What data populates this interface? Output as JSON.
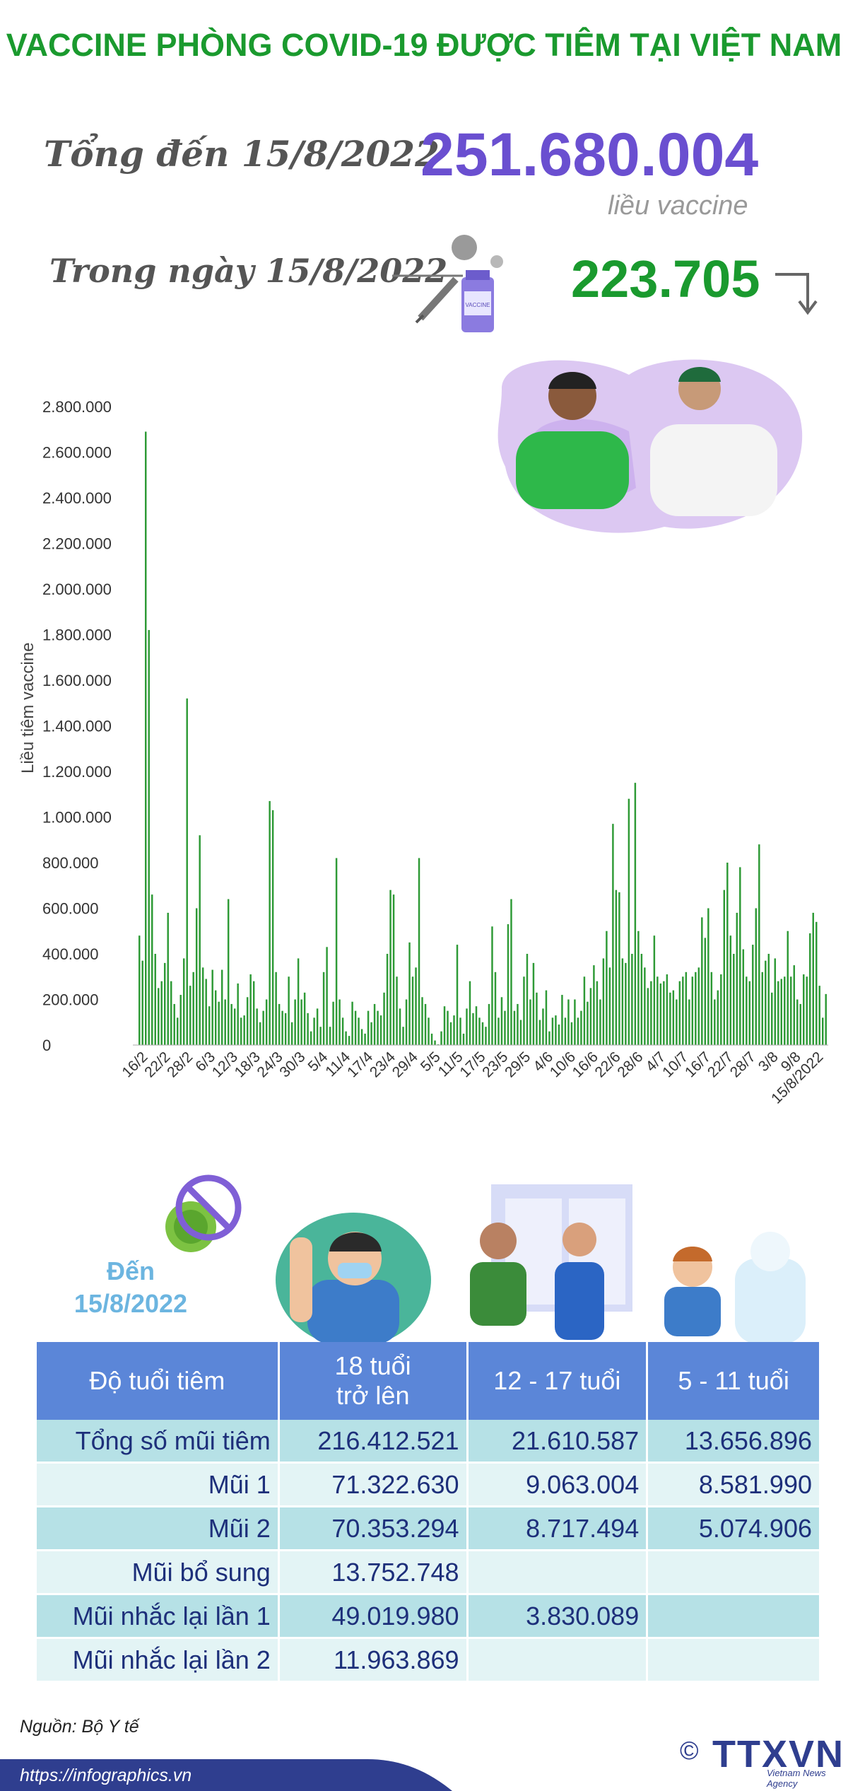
{
  "title": "VACCINE PHÒNG COVID-19 ĐƯỢC TIÊM TẠI VIỆT NAM",
  "summary": {
    "total_label": "Tổng đến 15/8/2022",
    "total_value": "251.680.004",
    "total_unit": "liều vaccine",
    "day_label": "Trong ngày 15/8/2022",
    "day_value": "223.705",
    "vial_text": "VACCINE"
  },
  "chart_data": {
    "type": "bar",
    "title": "",
    "xlabel": "",
    "ylabel": "Liều tiêm vaccine",
    "ylim": [
      0,
      2800000
    ],
    "yticks": [
      "2.800.000",
      "2.600.000",
      "2.400.000",
      "2.200.000",
      "2.000.000",
      "1.800.000",
      "1.600.000",
      "1.400.000",
      "1.200.000",
      "1.000.000",
      "800.000",
      "600.000",
      "400.000",
      "200.000",
      "0"
    ],
    "xtick_labels": [
      "16/2",
      "22/2",
      "28/2",
      "6/3",
      "12/3",
      "18/3",
      "24/3",
      "30/3",
      "5/4",
      "11/4",
      "17/4",
      "23/4",
      "29/4",
      "5/5",
      "11/5",
      "17/5",
      "23/5",
      "29/5",
      "4/6",
      "10/6",
      "16/6",
      "22/6",
      "28/6",
      "4/7",
      "10/7",
      "16/7",
      "22/7",
      "28/7",
      "3/8",
      "9/8",
      "15/8/2022"
    ],
    "values": [
      480000,
      370000,
      2690000,
      1820000,
      660000,
      400000,
      250000,
      280000,
      360000,
      580000,
      280000,
      180000,
      120000,
      220000,
      380000,
      1520000,
      260000,
      320000,
      600000,
      920000,
      340000,
      290000,
      170000,
      330000,
      240000,
      190000,
      330000,
      200000,
      640000,
      180000,
      160000,
      270000,
      120000,
      130000,
      210000,
      310000,
      280000,
      160000,
      100000,
      150000,
      200000,
      1070000,
      1030000,
      320000,
      180000,
      150000,
      140000,
      300000,
      100000,
      200000,
      380000,
      200000,
      230000,
      140000,
      60000,
      120000,
      160000,
      80000,
      320000,
      430000,
      80000,
      190000,
      820000,
      200000,
      120000,
      60000,
      40000,
      190000,
      150000,
      120000,
      70000,
      50000,
      150000,
      100000,
      180000,
      150000,
      130000,
      230000,
      400000,
      680000,
      660000,
      300000,
      160000,
      80000,
      200000,
      450000,
      300000,
      340000,
      820000,
      210000,
      180000,
      120000,
      50000,
      20000,
      0,
      60000,
      170000,
      150000,
      100000,
      130000,
      440000,
      120000,
      50000,
      160000,
      280000,
      140000,
      170000,
      120000,
      100000,
      80000,
      180000,
      520000,
      320000,
      120000,
      210000,
      150000,
      530000,
      640000,
      150000,
      180000,
      110000,
      300000,
      400000,
      200000,
      360000,
      230000,
      110000,
      160000,
      240000,
      60000,
      120000,
      130000,
      90000,
      220000,
      120000,
      200000,
      100000,
      200000,
      120000,
      150000,
      300000,
      190000,
      250000,
      350000,
      280000,
      200000,
      380000,
      500000,
      340000,
      970000,
      680000,
      670000,
      380000,
      360000,
      1080000,
      400000,
      1150000,
      500000,
      400000,
      340000,
      250000,
      280000,
      480000,
      300000,
      270000,
      280000,
      310000,
      230000,
      240000,
      200000,
      280000,
      300000,
      320000,
      200000,
      300000,
      320000,
      340000,
      560000,
      470000,
      600000,
      320000,
      200000,
      240000,
      310000,
      680000,
      800000,
      480000,
      400000,
      580000,
      780000,
      420000,
      300000,
      280000,
      440000,
      600000,
      880000,
      320000,
      370000,
      400000,
      230000,
      380000,
      280000,
      290000,
      300000,
      500000,
      300000,
      350000,
      200000,
      180000,
      310000,
      300000,
      490000,
      580000,
      540000,
      260000,
      120000,
      223705
    ]
  },
  "age_section": {
    "den_label": "Đến",
    "den_date": "15/8/2022"
  },
  "table": {
    "headers": [
      "Độ tuổi tiêm",
      "18 tuổi\ntrở lên",
      "12 - 17 tuổi",
      "5 - 11 tuổi"
    ],
    "rows": [
      [
        "Tổng số mũi tiêm",
        "216.412.521",
        "21.610.587",
        "13.656.896"
      ],
      [
        "Mũi 1",
        "71.322.630",
        "9.063.004",
        "8.581.990"
      ],
      [
        "Mũi 2",
        "70.353.294",
        "8.717.494",
        "5.074.906"
      ],
      [
        "Mũi bổ sung",
        "13.752.748",
        "",
        ""
      ],
      [
        "Mũi nhắc lại lần 1",
        "49.019.980",
        "3.830.089",
        ""
      ],
      [
        "Mũi nhắc lại lần 2",
        "11.963.869",
        "",
        ""
      ]
    ]
  },
  "footer": {
    "source": "Nguồn: Bộ Y tế",
    "url": "https://infographics.vn",
    "logo": "TTXVN",
    "logo_sub": "Vietnam News Agency",
    "copyright": "©"
  },
  "colors": {
    "title_green": "#1a9a2e",
    "total_purple": "#6a4fd0",
    "bar_green": "#2e9a36",
    "table_header": "#5b86d8",
    "row_dark": "#b6e1e6",
    "row_light": "#e3f4f5",
    "footer_blue": "#2f3e8f"
  }
}
